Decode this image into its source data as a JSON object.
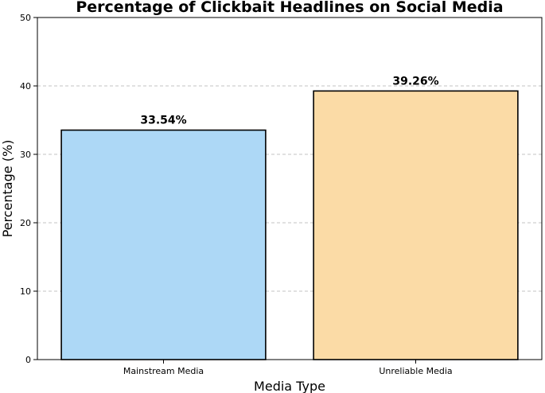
{
  "chart_data": {
    "type": "bar",
    "title": "Percentage of Clickbait Headlines on Social Media",
    "xlabel": "Media Type",
    "ylabel": "Percentage (%)",
    "categories": [
      "Mainstream Media",
      "Unreliable Media"
    ],
    "values": [
      33.54,
      39.26
    ],
    "data_labels": [
      "33.54%",
      "39.26%"
    ],
    "colors": [
      "#add8f6",
      "#fbdba6"
    ],
    "ylim": [
      0,
      50
    ],
    "yticks": [
      0,
      10,
      20,
      30,
      40,
      50
    ],
    "ytick_labels": [
      "0",
      "10",
      "20",
      "30",
      "40",
      "50"
    ],
    "grid": "y-dashed"
  }
}
